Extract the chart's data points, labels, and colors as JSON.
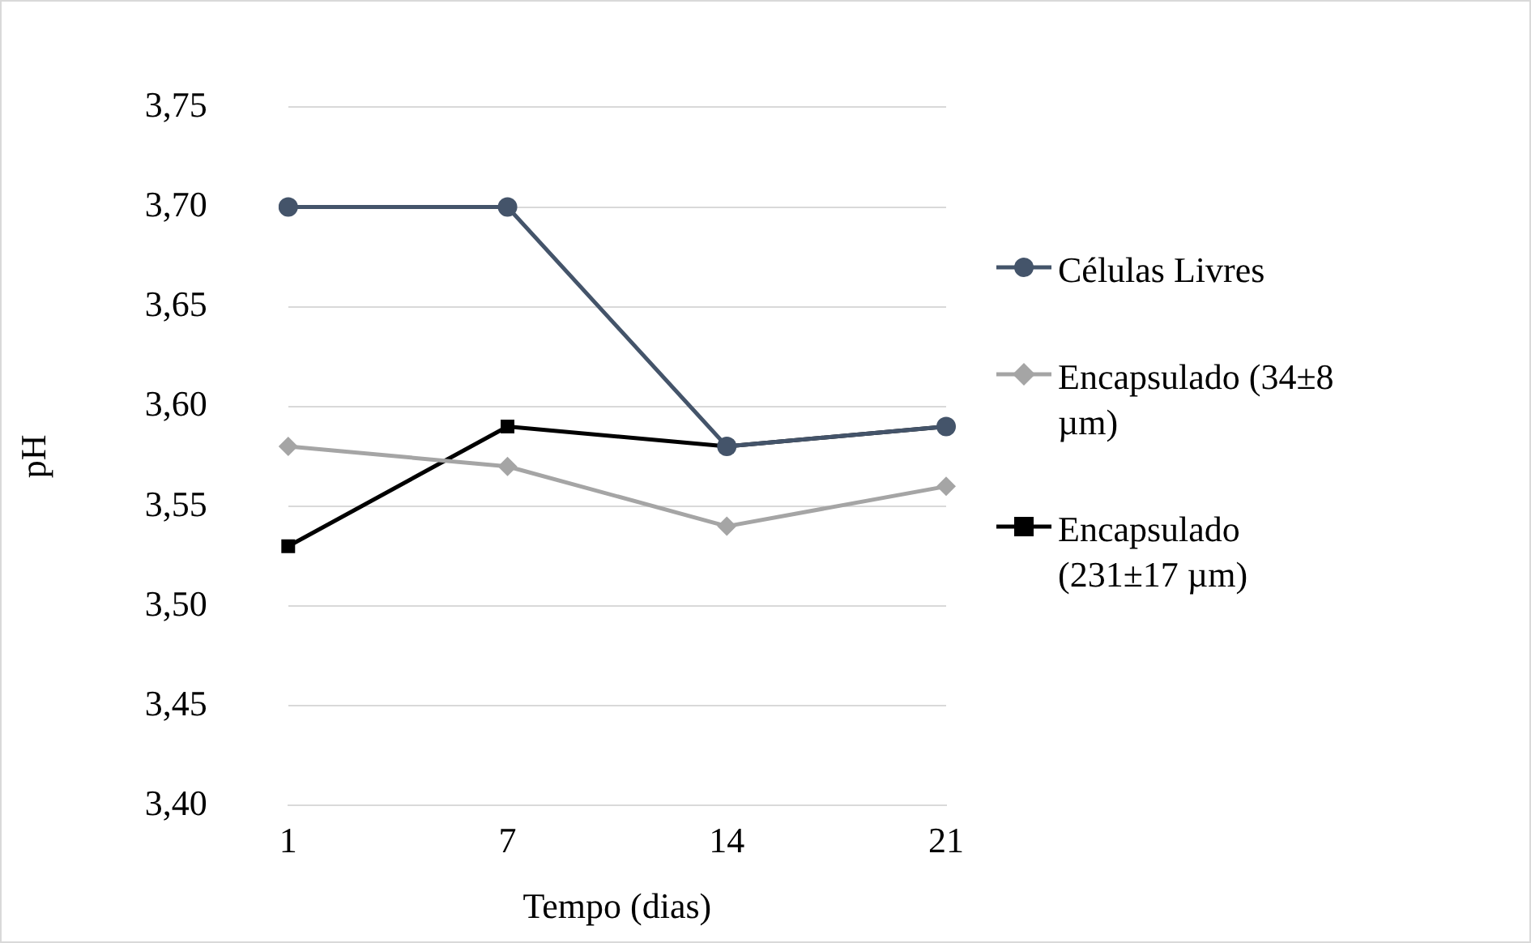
{
  "chart_data": {
    "type": "line",
    "xlabel": "Tempo (dias)",
    "ylabel": "pH",
    "categories": [
      "1",
      "7",
      "14",
      "21"
    ],
    "series": [
      {
        "name": "Células Livres",
        "color": "#44546a",
        "marker": "circle",
        "values": [
          3.7,
          3.7,
          3.58,
          3.59
        ]
      },
      {
        "name": "Encapsulado (34±8 µm)",
        "color": "#a5a5a5",
        "marker": "diamond",
        "values": [
          3.58,
          3.57,
          3.54,
          3.56
        ]
      },
      {
        "name": "Encapsulado (231±17 µm)",
        "color": "#000000",
        "marker": "square",
        "values": [
          3.53,
          3.59,
          3.58,
          3.59
        ]
      }
    ],
    "ylim": [
      3.4,
      3.75
    ],
    "yticks": [
      {
        "value": 3.4,
        "label": "3,40"
      },
      {
        "value": 3.45,
        "label": "3,45"
      },
      {
        "value": 3.5,
        "label": "3,50"
      },
      {
        "value": 3.55,
        "label": "3,55"
      },
      {
        "value": 3.6,
        "label": "3,60"
      },
      {
        "value": 3.65,
        "label": "3,65"
      },
      {
        "value": 3.7,
        "label": "3,70"
      },
      {
        "value": 3.75,
        "label": "3,75"
      }
    ],
    "grid": "y",
    "legend": "right"
  }
}
